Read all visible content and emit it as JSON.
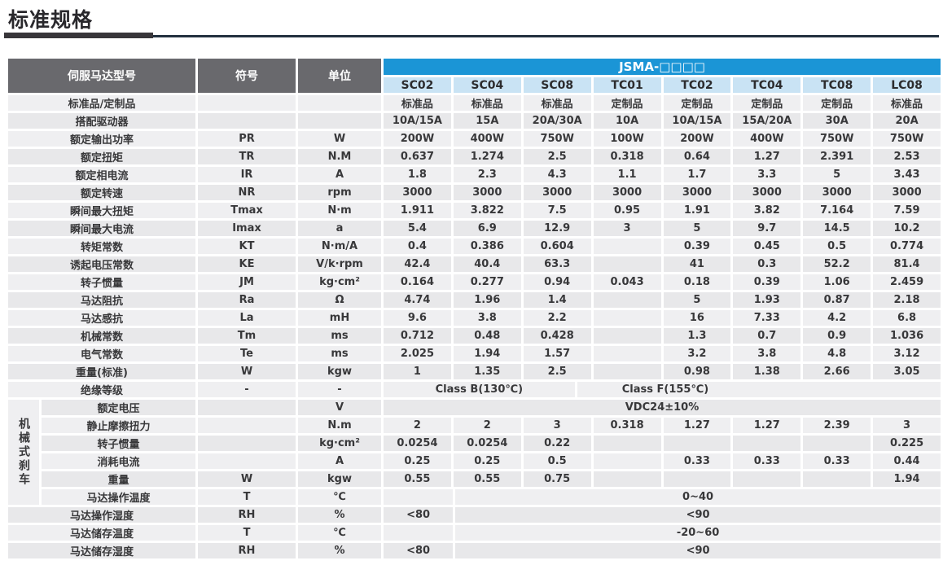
{
  "page_title": "标准规格",
  "colors": {
    "header_gray": "#69696d",
    "band_blue": "#1b95d6",
    "model_blue": "#c9e3f4",
    "row_light": "#efeff1",
    "row_dark": "#e8e8ea"
  },
  "table": {
    "header": {
      "model_label": "伺服马达型号",
      "symbol_label": "符号",
      "unit_label": "单位",
      "series_label": "JSMA-□□□□",
      "models": [
        "SC02",
        "SC04",
        "SC08",
        "TC01",
        "TC02",
        "TC04",
        "TC08",
        "LC08"
      ]
    },
    "brake_group_label": "机械式刹车",
    "rows": [
      {
        "label": "标准品/定制品",
        "symbol": "",
        "unit": "",
        "values": [
          "标准品",
          "标准品",
          "标准品",
          "定制品",
          "定制品",
          "定制品",
          "定制品",
          "标准品"
        ]
      },
      {
        "label": "搭配驱动器",
        "symbol": "",
        "unit": "",
        "values": [
          "10A/15A",
          "15A",
          "20A/30A",
          "10A",
          "10A/15A",
          "15A/20A",
          "30A",
          "20A"
        ]
      },
      {
        "label": "额定输出功率",
        "symbol": "PR",
        "unit": "W",
        "values": [
          "200W",
          "400W",
          "750W",
          "100W",
          "200W",
          "400W",
          "750W",
          "750W"
        ]
      },
      {
        "label": "额定扭矩",
        "symbol": "TR",
        "unit": "N.M",
        "values": [
          "0.637",
          "1.274",
          "2.5",
          "0.318",
          "0.64",
          "1.27",
          "2.391",
          "2.53"
        ]
      },
      {
        "label": "额定相电流",
        "symbol": "IR",
        "unit": "A",
        "values": [
          "1.8",
          "2.3",
          "4.3",
          "1.1",
          "1.7",
          "3.3",
          "5",
          "3.43"
        ]
      },
      {
        "label": "额定转速",
        "symbol": "NR",
        "unit": "rpm",
        "values": [
          "3000",
          "3000",
          "3000",
          "3000",
          "3000",
          "3000",
          "3000",
          "3000"
        ]
      },
      {
        "label": "瞬间最大扭矩",
        "symbol": "Tmax",
        "unit": "N·m",
        "values": [
          "1.911",
          "3.822",
          "7.5",
          "0.95",
          "1.91",
          "3.82",
          "7.164",
          "7.59"
        ]
      },
      {
        "label": "瞬间最大电流",
        "symbol": "Imax",
        "unit": "a",
        "values": [
          "5.4",
          "6.9",
          "12.9",
          "3",
          "5",
          "9.7",
          "14.5",
          "10.2"
        ]
      },
      {
        "label": "转矩常数",
        "symbol": "KT",
        "unit": "N·m/A",
        "values": [
          "0.4",
          "0.386",
          "0.604",
          "",
          "0.39",
          "0.45",
          "0.5",
          "0.774"
        ]
      },
      {
        "label": "诱起电压常数",
        "symbol": "KE",
        "unit": "V/k·rpm",
        "values": [
          "42.4",
          "40.4",
          "63.3",
          "",
          "41",
          "0.3",
          "52.2",
          "81.4"
        ]
      },
      {
        "label": "转子惯量",
        "symbol": "JM",
        "unit": "kg·cm²",
        "values": [
          "0.164",
          "0.277",
          "0.94",
          "0.043",
          "0.18",
          "0.39",
          "1.06",
          "2.459"
        ]
      },
      {
        "label": "马达阻抗",
        "symbol": "Ra",
        "unit": "Ω",
        "values": [
          "4.74",
          "1.96",
          "1.4",
          "",
          "5",
          "1.93",
          "0.87",
          "2.18"
        ]
      },
      {
        "label": "马达感抗",
        "symbol": "La",
        "unit": "mH",
        "values": [
          "9.6",
          "3.8",
          "2.2",
          "",
          "16",
          "7.33",
          "4.2",
          "6.8"
        ]
      },
      {
        "label": "机械常数",
        "symbol": "Tm",
        "unit": "ms",
        "values": [
          "0.712",
          "0.48",
          "0.428",
          "",
          "1.3",
          "0.7",
          "0.9",
          "1.036"
        ]
      },
      {
        "label": "电气常数",
        "symbol": "Te",
        "unit": "ms",
        "values": [
          "2.025",
          "1.94",
          "1.57",
          "",
          "3.2",
          "3.8",
          "4.8",
          "3.12"
        ]
      },
      {
        "label": "重量(标准)",
        "symbol": "W",
        "unit": "kgw",
        "values": [
          "1",
          "1.35",
          "2.5",
          "",
          "0.98",
          "1.38",
          "2.66",
          "3.05"
        ]
      },
      {
        "label": "绝缘等级",
        "symbol": "-",
        "unit": "-",
        "spans": [
          {
            "text": "Class B(130℃)",
            "cols": 3
          },
          {
            "text": "Class F(155℃)",
            "cols": 5,
            "align": "left"
          }
        ]
      },
      {
        "label": "额定电压",
        "symbol": "",
        "unit": "V",
        "brake": true,
        "spans": [
          {
            "text": "VDC24±10%",
            "cols": 8
          }
        ]
      },
      {
        "label": "静止摩擦扭力",
        "symbol": "",
        "unit": "N.m",
        "brake": true,
        "values": [
          "2",
          "2",
          "3",
          "0.318",
          "1.27",
          "1.27",
          "2.39",
          "3"
        ]
      },
      {
        "label": "转子惯量",
        "symbol": "",
        "unit": "kg·cm²",
        "brake": true,
        "values": [
          "0.0254",
          "0.0254",
          "0.22",
          "",
          "",
          "",
          "",
          "0.225"
        ]
      },
      {
        "label": "消耗电流",
        "symbol": "",
        "unit": "A",
        "brake": true,
        "values": [
          "0.25",
          "0.25",
          "0.5",
          "",
          "0.33",
          "0.33",
          "0.33",
          "0.44"
        ]
      },
      {
        "label": "重量",
        "symbol": "W",
        "unit": "kgw",
        "brake": true,
        "values": [
          "0.55",
          "0.55",
          "0.75",
          "",
          "",
          "",
          "",
          "1.94"
        ]
      },
      {
        "label": "马达操作温度",
        "symbol": "T",
        "unit": "℃",
        "brake": true,
        "spans": [
          {
            "text": "",
            "cols": 1
          },
          {
            "text": "0~40",
            "cols": 7
          }
        ]
      },
      {
        "label": "马达操作湿度",
        "symbol": "RH",
        "unit": "%",
        "spans": [
          {
            "text": "<80",
            "cols": 1
          },
          {
            "text": "<90",
            "cols": 7
          }
        ]
      },
      {
        "label": "马达储存温度",
        "symbol": "T",
        "unit": "℃",
        "spans": [
          {
            "text": "",
            "cols": 1
          },
          {
            "text": "-20~60",
            "cols": 7
          }
        ]
      },
      {
        "label": "马达储存湿度",
        "symbol": "RH",
        "unit": "%",
        "spans": [
          {
            "text": "<80",
            "cols": 1
          },
          {
            "text": "<90",
            "cols": 7
          }
        ]
      }
    ]
  }
}
